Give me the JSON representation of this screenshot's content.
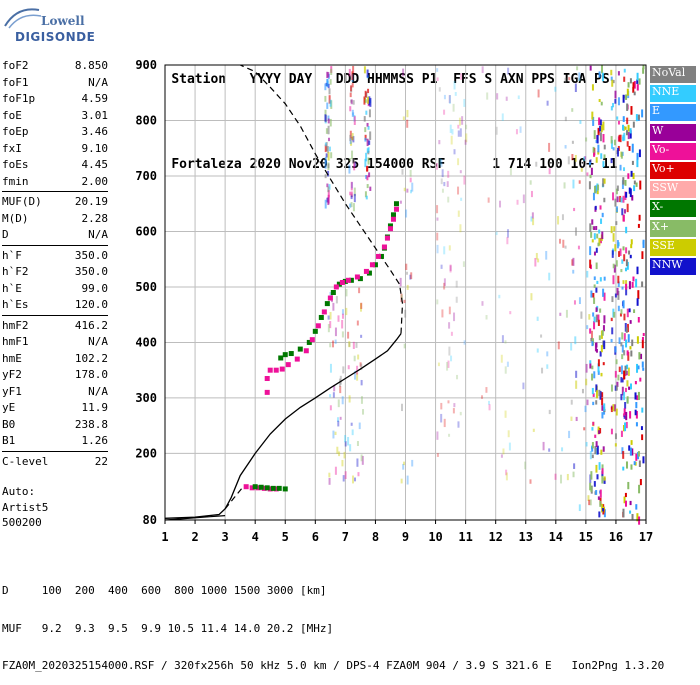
{
  "logo": {
    "line1": "Lowell",
    "line2": "DIGISONDE"
  },
  "header": {
    "row1": [
      "Station",
      "YYYY DAY",
      "DDD HHMMSS P1",
      "FFS S",
      "AXN",
      "PPS",
      "IGA",
      "PS"
    ],
    "row2": [
      "Fortaleza",
      "2020 Nov20",
      "325 154000 RSF",
      "1",
      "714",
      "100",
      "10+",
      "11"
    ]
  },
  "params": [
    [
      [
        "foF2",
        "8.850"
      ],
      [
        "foF1",
        "N/A"
      ],
      [
        "foF1p",
        "4.59"
      ],
      [
        "foE",
        "3.01"
      ],
      [
        "foEp",
        "3.46"
      ],
      [
        "fxI",
        "9.10"
      ],
      [
        "foEs",
        "4.45"
      ],
      [
        "fmin",
        "2.00"
      ]
    ],
    [
      [
        "MUF(D)",
        "20.19"
      ],
      [
        "M(D)",
        "2.28"
      ],
      [
        "D",
        "N/A"
      ]
    ],
    [
      [
        "h`F",
        "350.0"
      ],
      [
        "h`F2",
        "350.0"
      ],
      [
        "h`E",
        "99.0"
      ],
      [
        "h`Es",
        "120.0"
      ]
    ],
    [
      [
        "hmF2",
        "416.2"
      ],
      [
        "hmF1",
        "N/A"
      ],
      [
        "hmE",
        "102.2"
      ],
      [
        "yF2",
        "178.0"
      ],
      [
        "yF1",
        "N/A"
      ],
      [
        "yE",
        "11.9"
      ],
      [
        "B0",
        "238.8"
      ],
      [
        "B1",
        "1.26"
      ]
    ],
    [
      [
        "C-level",
        "22"
      ]
    ]
  ],
  "auto": {
    "line1": "Auto:",
    "line2": "Artist5",
    "line3": "500200"
  },
  "legend": [
    {
      "label": "NoVal",
      "color": "#808080"
    },
    {
      "label": "NNE",
      "color": "#33ccff"
    },
    {
      "label": "E",
      "color": "#3399ff"
    },
    {
      "label": "W",
      "color": "#990099"
    },
    {
      "label": "Vo-",
      "color": "#ee1199"
    },
    {
      "label": "Vo+",
      "color": "#dd0000"
    },
    {
      "label": "SSW",
      "color": "#ffaaaa"
    },
    {
      "label": "X-",
      "color": "#007700"
    },
    {
      "label": "X+",
      "color": "#88bb66"
    },
    {
      "label": "SSE",
      "color": "#cccc00"
    },
    {
      "label": "NNW",
      "color": "#1111cc"
    }
  ],
  "chart_data": {
    "type": "scatter",
    "xlim": [
      1,
      17
    ],
    "ylim": [
      80,
      900
    ],
    "x_ticks": [
      "1",
      "2",
      "3",
      "4",
      "5",
      "6",
      "7",
      "8",
      "9",
      "10",
      "11",
      "12",
      "13",
      "14",
      "15",
      "16",
      "17"
    ],
    "y_ticks": [
      "80",
      "200",
      "300",
      "400",
      "500",
      "600",
      "700",
      "800",
      "900"
    ],
    "grid": true,
    "series": [
      {
        "name": "X-",
        "color": "#007700",
        "points": [
          [
            8.7,
            650
          ],
          [
            8.6,
            630
          ],
          [
            8.5,
            610
          ],
          [
            8.4,
            590
          ],
          [
            8.3,
            570
          ],
          [
            8.2,
            555
          ],
          [
            8.0,
            540
          ],
          [
            7.8,
            525
          ],
          [
            7.5,
            515
          ],
          [
            7.2,
            512
          ],
          [
            7.0,
            510
          ],
          [
            6.8,
            505
          ],
          [
            6.6,
            490
          ],
          [
            6.4,
            470
          ],
          [
            6.2,
            445
          ],
          [
            6.0,
            420
          ],
          [
            5.8,
            400
          ],
          [
            5.5,
            388
          ],
          [
            5.2,
            380
          ],
          [
            5.0,
            378
          ],
          [
            4.85,
            372
          ]
        ]
      },
      {
        "name": "Vo-",
        "color": "#ee1199",
        "points": [
          [
            8.7,
            640
          ],
          [
            8.6,
            622
          ],
          [
            8.5,
            605
          ],
          [
            8.4,
            588
          ],
          [
            8.3,
            572
          ],
          [
            8.1,
            555
          ],
          [
            7.9,
            540
          ],
          [
            7.7,
            528
          ],
          [
            7.4,
            518
          ],
          [
            7.1,
            512
          ],
          [
            6.9,
            508
          ],
          [
            6.7,
            500
          ],
          [
            6.5,
            480
          ],
          [
            6.3,
            455
          ],
          [
            6.1,
            430
          ],
          [
            5.9,
            405
          ],
          [
            5.7,
            385
          ],
          [
            5.4,
            370
          ],
          [
            5.1,
            360
          ],
          [
            4.9,
            352
          ],
          [
            4.7,
            350
          ],
          [
            4.5,
            350
          ],
          [
            4.4,
            335
          ],
          [
            4.4,
            310
          ]
        ]
      },
      {
        "name": "Vo- Es",
        "color": "#ee1199",
        "points": [
          [
            3.7,
            140
          ],
          [
            3.9,
            138
          ],
          [
            4.1,
            138
          ],
          [
            4.3,
            137
          ],
          [
            4.5,
            136
          ],
          [
            4.7,
            136
          ]
        ]
      },
      {
        "name": "X- Es",
        "color": "#007700",
        "points": [
          [
            4.0,
            140
          ],
          [
            4.2,
            139
          ],
          [
            4.4,
            138
          ],
          [
            4.6,
            137
          ],
          [
            4.8,
            137
          ],
          [
            5.0,
            136
          ]
        ]
      }
    ],
    "profile_solid": [
      [
        1.0,
        83
      ],
      [
        2.0,
        85
      ],
      [
        2.8,
        90
      ],
      [
        3.0,
        100
      ],
      [
        3.2,
        120
      ],
      [
        3.5,
        160
      ],
      [
        4.0,
        200
      ],
      [
        4.5,
        235
      ],
      [
        5.0,
        262
      ],
      [
        5.5,
        283
      ],
      [
        6.0,
        300
      ],
      [
        6.5,
        318
      ],
      [
        7.0,
        335
      ],
      [
        7.5,
        352
      ],
      [
        8.0,
        370
      ],
      [
        8.4,
        385
      ],
      [
        8.7,
        405
      ],
      [
        8.85,
        416
      ]
    ],
    "profile_dashed": [
      [
        8.85,
        416
      ],
      [
        8.9,
        470
      ],
      [
        8.8,
        505
      ],
      [
        8.5,
        530
      ],
      [
        8.0,
        570
      ],
      [
        7.5,
        610
      ],
      [
        7.0,
        650
      ],
      [
        6.5,
        695
      ],
      [
        6.0,
        740
      ],
      [
        5.5,
        790
      ],
      [
        5.0,
        830
      ],
      [
        4.5,
        860
      ],
      [
        4.0,
        888
      ],
      [
        3.5,
        900
      ]
    ],
    "profile_dashed_low": [
      [
        3.0,
        100
      ],
      [
        3.3,
        120
      ],
      [
        3.6,
        140
      ]
    ],
    "profile_ehigh": [
      [
        1.0,
        80
      ],
      [
        1.8,
        83
      ],
      [
        2.5,
        86
      ],
      [
        3.0,
        88
      ]
    ]
  },
  "footer": {
    "d_row": "D     100  200  400  600  800 1000 1500 3000 [km]",
    "muf_row": "MUF   9.2  9.3  9.5  9.9 10.5 11.4 14.0 20.2 [MHz]",
    "file_row": "FZA0M_2020325154000.RSF / 320fx256h 50 kHz 5.0 km / DPS-4 FZA0M 904 / 3.9 S 321.6 E   Ion2Png 1.3.20"
  }
}
